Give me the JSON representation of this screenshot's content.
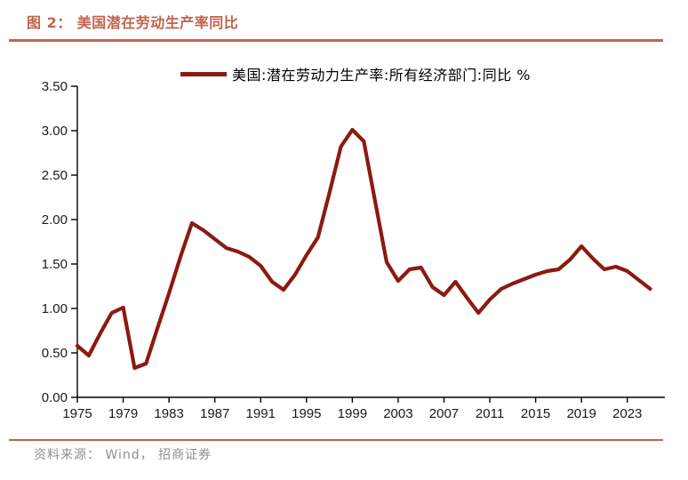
{
  "header": {
    "title": "图 2： 美国潜在劳动生产率同比"
  },
  "legend": {
    "label": "美国:潜在劳动力生产率:所有经济部门:同比 %"
  },
  "footer": {
    "source": "资料来源： Wind， 招商证券"
  },
  "colors": {
    "accent_rule": "#c2634c",
    "title_text": "#c2634c",
    "line": "#8b1a10",
    "axis": "#000000",
    "source_text": "#8f8f8f"
  },
  "chart_data": {
    "type": "line",
    "title": "图 2： 美国潜在劳动生产率同比",
    "xlabel": "",
    "ylabel": "",
    "ylim": [
      0,
      3.5
    ],
    "ytick_step": 0.5,
    "ytick_labels": [
      "0.00",
      "0.50",
      "1.00",
      "1.50",
      "2.00",
      "2.50",
      "3.00",
      "3.50"
    ],
    "xticks": [
      1975,
      1979,
      1983,
      1987,
      1991,
      1995,
      1999,
      2003,
      2007,
      2011,
      2015,
      2019,
      2023
    ],
    "grid": false,
    "legend_position": "top-center",
    "x": [
      1975,
      1976,
      1977,
      1978,
      1979,
      1980,
      1981,
      1982,
      1983,
      1984,
      1985,
      1986,
      1987,
      1988,
      1989,
      1990,
      1991,
      1992,
      1993,
      1994,
      1995,
      1996,
      1997,
      1998,
      1999,
      2000,
      2001,
      2002,
      2003,
      2004,
      2005,
      2006,
      2007,
      2008,
      2009,
      2010,
      2011,
      2012,
      2013,
      2014,
      2015,
      2016,
      2017,
      2018,
      2019,
      2020,
      2021,
      2022,
      2023,
      2024,
      2025
    ],
    "series": [
      {
        "name": "美国:潜在劳动力生产率:所有经济部门:同比 %",
        "color": "#8b1a10",
        "values": [
          0.58,
          0.47,
          0.72,
          0.95,
          1.01,
          0.33,
          0.38,
          0.78,
          1.17,
          1.58,
          1.96,
          1.88,
          1.78,
          1.68,
          1.64,
          1.58,
          1.48,
          1.3,
          1.21,
          1.38,
          1.6,
          1.8,
          2.3,
          2.82,
          3.01,
          2.88,
          2.2,
          1.52,
          1.31,
          1.44,
          1.46,
          1.24,
          1.15,
          1.3,
          1.12,
          0.95,
          1.1,
          1.22,
          1.28,
          1.33,
          1.38,
          1.42,
          1.44,
          1.55,
          1.7,
          1.56,
          1.44,
          1.47,
          1.42,
          1.32,
          1.22
        ]
      }
    ]
  }
}
